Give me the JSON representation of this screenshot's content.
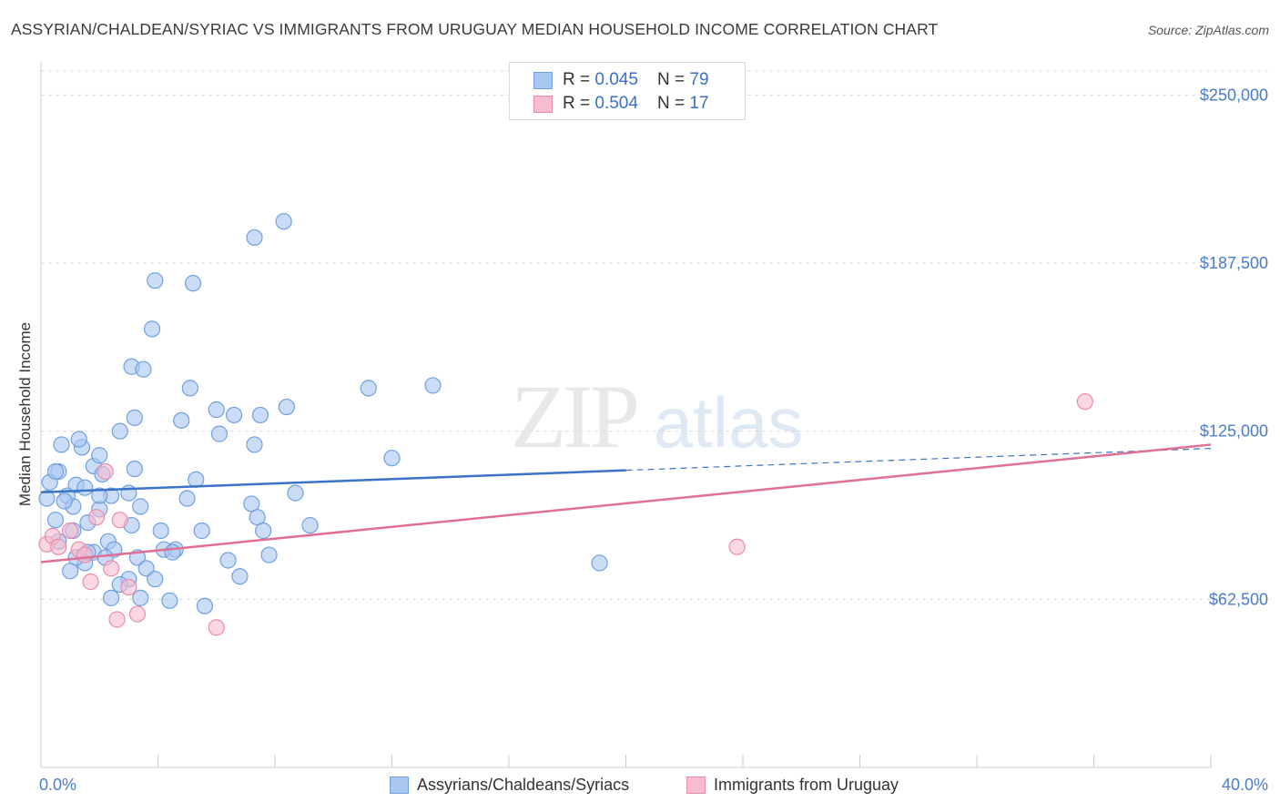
{
  "title": "ASSYRIAN/CHALDEAN/SYRIAC VS IMMIGRANTS FROM URUGUAY MEDIAN HOUSEHOLD INCOME CORRELATION CHART",
  "source": "Source: ZipAtlas.com",
  "watermark": {
    "zip": "ZIP",
    "atlas": "atlas"
  },
  "legend_top": [
    {
      "r_label": "R = ",
      "r_value": "0.045",
      "n_label": "N = ",
      "n_value": "79",
      "color": "#a9c6f0",
      "border": "#6f9fe0"
    },
    {
      "r_label": "R = ",
      "r_value": "0.504",
      "n_label": "N = ",
      "n_value": "17",
      "color": "#f7bcd0",
      "border": "#e98bab"
    }
  ],
  "chart_data": {
    "type": "scatter",
    "title": "ASSYRIAN/CHALDEAN/SYRIAC VS IMMIGRANTS FROM URUGUAY MEDIAN HOUSEHOLD INCOME CORRELATION CHART",
    "xlabel": "",
    "ylabel": "Median Household Income",
    "xlim": [
      0,
      40
    ],
    "ylim": [
      0,
      265000
    ],
    "x_tick_labels": [
      "0.0%",
      "40.0%"
    ],
    "y_ticks": [
      62500,
      125000,
      187500,
      250000
    ],
    "y_tick_labels": [
      "$62,500",
      "$125,000",
      "$187,500",
      "$250,000"
    ],
    "grid": true,
    "series": [
      {
        "name": "Assyrians/Chaldeans/Syriacs",
        "color": "#a9c6f0",
        "edge": "#6f9fe0",
        "trend_color": "#3a73c7",
        "trend": {
          "x0": 0,
          "y0": 102300,
          "x1": 40,
          "y1": 118600,
          "solid_until": 20
        },
        "points": [
          [
            0.3,
            106000
          ],
          [
            0.6,
            110000
          ],
          [
            0.9,
            101000
          ],
          [
            1.2,
            105000
          ],
          [
            1.5,
            104000
          ],
          [
            1.1,
            97000
          ],
          [
            0.5,
            92000
          ],
          [
            0.8,
            99000
          ],
          [
            1.8,
            112000
          ],
          [
            2.1,
            109000
          ],
          [
            2.4,
            101000
          ],
          [
            2.0,
            96000
          ],
          [
            1.6,
            91000
          ],
          [
            0.7,
            120000
          ],
          [
            1.4,
            119000
          ],
          [
            2.0,
            116000
          ],
          [
            3.0,
            102000
          ],
          [
            3.2,
            111000
          ],
          [
            3.4,
            97000
          ],
          [
            3.1,
            90000
          ],
          [
            2.3,
            84000
          ],
          [
            2.5,
            81000
          ],
          [
            1.8,
            80000
          ],
          [
            1.5,
            76000
          ],
          [
            2.2,
            78000
          ],
          [
            3.3,
            78000
          ],
          [
            3.6,
            74000
          ],
          [
            3.0,
            70000
          ],
          [
            2.7,
            68000
          ],
          [
            3.9,
            70000
          ],
          [
            2.4,
            63000
          ],
          [
            3.4,
            63000
          ],
          [
            4.1,
            88000
          ],
          [
            4.2,
            81000
          ],
          [
            4.6,
            81000
          ],
          [
            4.4,
            62000
          ],
          [
            3.2,
            130000
          ],
          [
            4.5,
            80000
          ],
          [
            5.0,
            100000
          ],
          [
            5.5,
            88000
          ],
          [
            5.3,
            107000
          ],
          [
            6.0,
            133000
          ],
          [
            6.1,
            124000
          ],
          [
            5.6,
            60000
          ],
          [
            6.4,
            77000
          ],
          [
            6.8,
            71000
          ],
          [
            7.2,
            98000
          ],
          [
            7.4,
            93000
          ],
          [
            7.3,
            120000
          ],
          [
            7.6,
            88000
          ],
          [
            7.8,
            79000
          ],
          [
            5.1,
            141000
          ],
          [
            3.1,
            149000
          ],
          [
            3.5,
            148000
          ],
          [
            6.6,
            131000
          ],
          [
            7.5,
            131000
          ],
          [
            8.4,
            134000
          ],
          [
            8.7,
            102000
          ],
          [
            9.2,
            90000
          ],
          [
            2.0,
            101000
          ],
          [
            0.5,
            110000
          ],
          [
            0.2,
            100000
          ],
          [
            0.6,
            84000
          ],
          [
            1.1,
            88000
          ],
          [
            1.2,
            78000
          ],
          [
            1.6,
            80000
          ],
          [
            1.0,
            73000
          ],
          [
            4.8,
            129000
          ],
          [
            1.3,
            122000
          ],
          [
            2.7,
            125000
          ],
          [
            3.8,
            163000
          ],
          [
            3.9,
            181000
          ],
          [
            5.2,
            180000
          ],
          [
            7.3,
            197000
          ],
          [
            8.3,
            203000
          ],
          [
            11.2,
            141000
          ],
          [
            12.0,
            115000
          ],
          [
            13.4,
            142000
          ],
          [
            19.1,
            76000
          ]
        ]
      },
      {
        "name": "Immigrants from Uruguay",
        "color": "#f7bcd0",
        "edge": "#e98bab",
        "trend_color": "#e06f98",
        "trend": {
          "x0": 0,
          "y0": 76300,
          "x1": 40,
          "y1": 120000,
          "solid_until": 40
        },
        "points": [
          [
            0.2,
            83000
          ],
          [
            0.4,
            86000
          ],
          [
            0.6,
            82000
          ],
          [
            1.0,
            88000
          ],
          [
            1.3,
            81000
          ],
          [
            1.5,
            79000
          ],
          [
            1.9,
            93000
          ],
          [
            2.2,
            110000
          ],
          [
            1.7,
            69000
          ],
          [
            2.4,
            74000
          ],
          [
            2.7,
            92000
          ],
          [
            3.0,
            67000
          ],
          [
            2.6,
            55000
          ],
          [
            3.3,
            57000
          ],
          [
            6.0,
            52000
          ],
          [
            23.8,
            82000
          ],
          [
            35.7,
            136000
          ]
        ]
      }
    ]
  }
}
